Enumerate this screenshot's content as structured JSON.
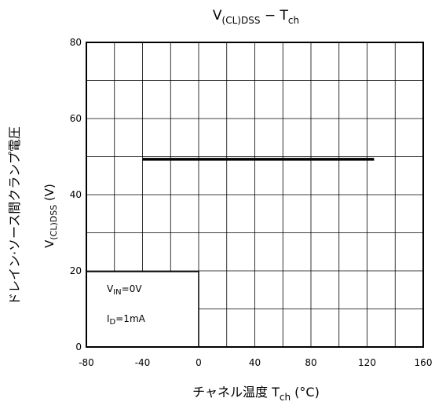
{
  "chart_data": {
    "type": "line",
    "title": {
      "main": "V",
      "main_sub": "(CL)DSS",
      "sep": " − T",
      "sep_sub": "ch"
    },
    "xlabel": {
      "main": "チャネル温度  T",
      "sub": "ch",
      "unit": " (°C)"
    },
    "ylabel": {
      "line1": "ドレイン·ソース間クランプ電圧",
      "line2_main": "V",
      "line2_sub": "(CL)DSS",
      "line2_unit": "  (V)"
    },
    "xlim": [
      -80,
      160
    ],
    "ylim": [
      0,
      80
    ],
    "x_ticks": [
      -80,
      -40,
      0,
      40,
      80,
      120,
      160
    ],
    "y_ticks": [
      0,
      20,
      40,
      60,
      80
    ],
    "x_grid_step": 20,
    "y_grid_step": 10,
    "grid": true,
    "series": [
      {
        "x": [
          -40,
          125
        ],
        "y": [
          49.3,
          49.3
        ]
      }
    ],
    "conditions": {
      "line1_main": "V",
      "line1_sub": "IN",
      "line1_rest": "=0V",
      "line2_main": "I",
      "line2_sub": "D",
      "line2_rest": "=1mA"
    }
  }
}
